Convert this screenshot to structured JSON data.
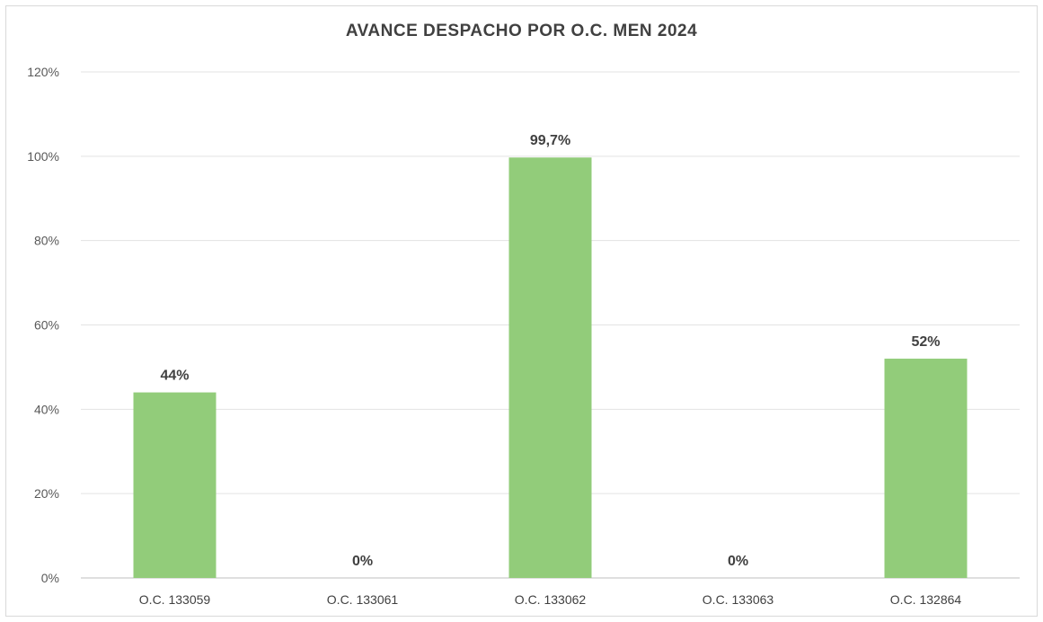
{
  "chart_data": {
    "type": "bar",
    "title": "AVANCE DESPACHO POR O.C. MEN 2024",
    "categories": [
      "O.C. 133059",
      "O.C. 133061",
      "O.C. 133062",
      "O.C. 133063",
      "O.C. 132864"
    ],
    "values": [
      44,
      0,
      99.7,
      0,
      52
    ],
    "data_labels": [
      "44%",
      "0%",
      "99,7%",
      "0%",
      "52%"
    ],
    "ylim": [
      0,
      120
    ],
    "yticks": [
      0,
      20,
      40,
      60,
      80,
      100,
      120
    ],
    "ytick_labels": [
      "0%",
      "20%",
      "40%",
      "60%",
      "80%",
      "100%",
      "120%"
    ],
    "xlabel": "",
    "ylabel": "",
    "grid": true,
    "legend": "none",
    "bar_color": "#92cc7a",
    "grid_color": "#e3e3e3"
  }
}
